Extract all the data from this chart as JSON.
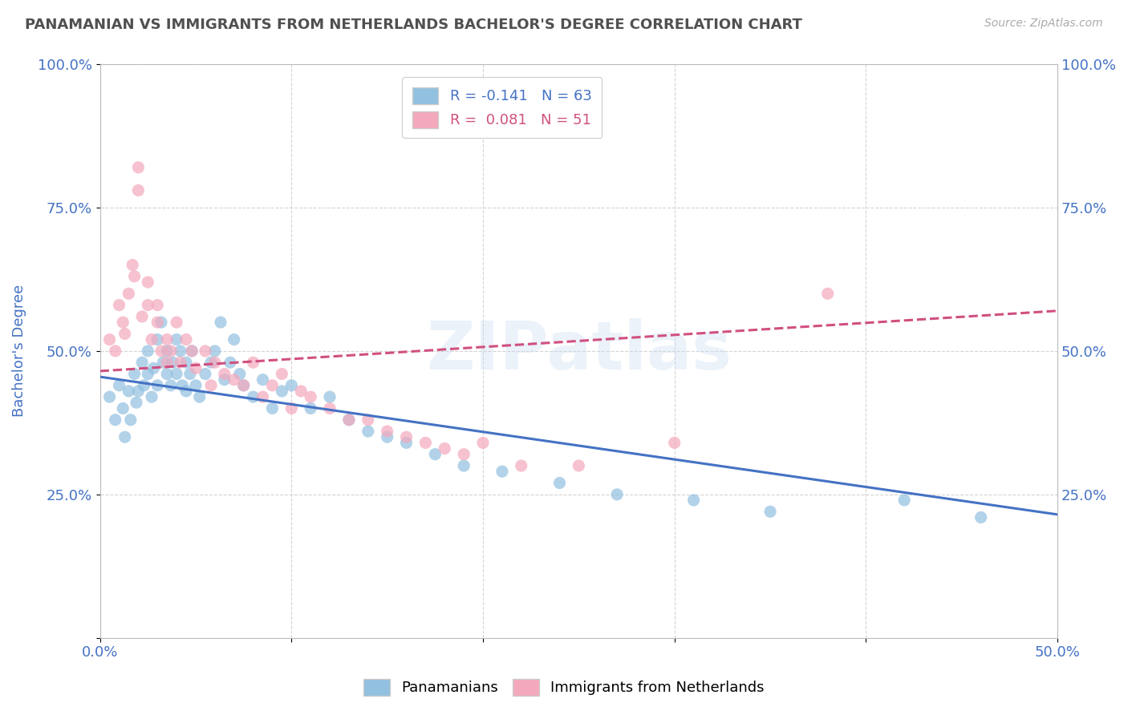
{
  "title": "PANAMANIAN VS IMMIGRANTS FROM NETHERLANDS BACHELOR'S DEGREE CORRELATION CHART",
  "source": "Source: ZipAtlas.com",
  "ylabel": "Bachelor's Degree",
  "xlim": [
    0.0,
    0.5
  ],
  "ylim": [
    0.0,
    1.0
  ],
  "xticks": [
    0.0,
    0.1,
    0.2,
    0.3,
    0.4,
    0.5
  ],
  "yticks": [
    0.0,
    0.25,
    0.5,
    0.75,
    1.0
  ],
  "xtick_labels": [
    "0.0%",
    "",
    "",
    "",
    "",
    "50.0%"
  ],
  "ytick_labels": [
    "",
    "25.0%",
    "50.0%",
    "75.0%",
    "100.0%"
  ],
  "blue_color": "#92c0e0",
  "pink_color": "#f4a8bc",
  "blue_line_color": "#4472c4",
  "pink_line_color": "#d05080",
  "watermark": "ZIPatlas",
  "legend_R_blue": "R = -0.141",
  "legend_N_blue": "N = 63",
  "legend_R_pink": "R =  0.081",
  "legend_N_pink": "N = 51",
  "legend_label_blue": "Panamanians",
  "legend_label_pink": "Immigrants from Netherlands",
  "blue_scatter_x": [
    0.005,
    0.008,
    0.01,
    0.012,
    0.013,
    0.015,
    0.016,
    0.018,
    0.019,
    0.02,
    0.022,
    0.023,
    0.025,
    0.025,
    0.027,
    0.028,
    0.03,
    0.03,
    0.032,
    0.033,
    0.035,
    0.035,
    0.037,
    0.038,
    0.04,
    0.04,
    0.042,
    0.043,
    0.045,
    0.045,
    0.047,
    0.048,
    0.05,
    0.052,
    0.055,
    0.058,
    0.06,
    0.063,
    0.065,
    0.068,
    0.07,
    0.073,
    0.075,
    0.08,
    0.085,
    0.09,
    0.095,
    0.1,
    0.11,
    0.12,
    0.13,
    0.14,
    0.15,
    0.16,
    0.175,
    0.19,
    0.21,
    0.24,
    0.27,
    0.31,
    0.35,
    0.42,
    0.46
  ],
  "blue_scatter_y": [
    0.42,
    0.38,
    0.44,
    0.4,
    0.35,
    0.43,
    0.38,
    0.46,
    0.41,
    0.43,
    0.48,
    0.44,
    0.5,
    0.46,
    0.42,
    0.47,
    0.52,
    0.44,
    0.55,
    0.48,
    0.46,
    0.5,
    0.44,
    0.48,
    0.52,
    0.46,
    0.5,
    0.44,
    0.48,
    0.43,
    0.46,
    0.5,
    0.44,
    0.42,
    0.46,
    0.48,
    0.5,
    0.55,
    0.45,
    0.48,
    0.52,
    0.46,
    0.44,
    0.42,
    0.45,
    0.4,
    0.43,
    0.44,
    0.4,
    0.42,
    0.38,
    0.36,
    0.35,
    0.34,
    0.32,
    0.3,
    0.29,
    0.27,
    0.25,
    0.24,
    0.22,
    0.24,
    0.21
  ],
  "pink_scatter_x": [
    0.005,
    0.008,
    0.01,
    0.012,
    0.013,
    0.015,
    0.017,
    0.018,
    0.02,
    0.02,
    0.022,
    0.025,
    0.025,
    0.027,
    0.03,
    0.03,
    0.032,
    0.035,
    0.035,
    0.037,
    0.04,
    0.042,
    0.045,
    0.048,
    0.05,
    0.055,
    0.058,
    0.06,
    0.065,
    0.07,
    0.075,
    0.08,
    0.085,
    0.09,
    0.095,
    0.1,
    0.105,
    0.11,
    0.12,
    0.13,
    0.14,
    0.15,
    0.16,
    0.17,
    0.18,
    0.19,
    0.2,
    0.22,
    0.25,
    0.3,
    0.38
  ],
  "pink_scatter_y": [
    0.52,
    0.5,
    0.58,
    0.55,
    0.53,
    0.6,
    0.65,
    0.63,
    0.78,
    0.82,
    0.56,
    0.62,
    0.58,
    0.52,
    0.55,
    0.58,
    0.5,
    0.52,
    0.48,
    0.5,
    0.55,
    0.48,
    0.52,
    0.5,
    0.47,
    0.5,
    0.44,
    0.48,
    0.46,
    0.45,
    0.44,
    0.48,
    0.42,
    0.44,
    0.46,
    0.4,
    0.43,
    0.42,
    0.4,
    0.38,
    0.38,
    0.36,
    0.35,
    0.34,
    0.33,
    0.32,
    0.34,
    0.3,
    0.3,
    0.34,
    0.6
  ],
  "blue_trend_x": [
    0.0,
    0.5
  ],
  "blue_trend_y": [
    0.455,
    0.215
  ],
  "pink_trend_x": [
    0.0,
    0.5
  ],
  "pink_trend_y": [
    0.465,
    0.57
  ],
  "grid_color": "#d0d0d0",
  "background_color": "#ffffff",
  "title_color": "#505050",
  "axis_label_color": "#4472c4",
  "tick_label_color": "#4472c4"
}
